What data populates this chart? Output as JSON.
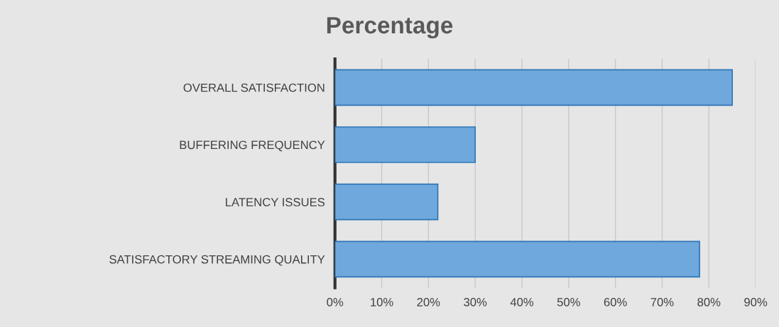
{
  "chart_data": {
    "type": "bar",
    "orientation": "horizontal",
    "title": "Percentage",
    "categories": [
      "OVERALL SATISFACTION",
      "BUFFERING FREQUENCY",
      "LATENCY ISSUES",
      "SATISFACTORY STREAMING QUALITY"
    ],
    "values": [
      85,
      30,
      22,
      78
    ],
    "color": "#6fa8dc",
    "xlim": [
      0,
      90
    ],
    "xticks": [
      {
        "value": 0,
        "label": "0%"
      },
      {
        "value": 10,
        "label": "10%"
      },
      {
        "value": 20,
        "label": "20%"
      },
      {
        "value": 30,
        "label": "30%"
      },
      {
        "value": 40,
        "label": "40%"
      },
      {
        "value": 50,
        "label": "50%"
      },
      {
        "value": 60,
        "label": "60%"
      },
      {
        "value": 70,
        "label": "70%"
      },
      {
        "value": 80,
        "label": "80%"
      },
      {
        "value": 90,
        "label": "90%"
      }
    ],
    "grid": "x"
  }
}
